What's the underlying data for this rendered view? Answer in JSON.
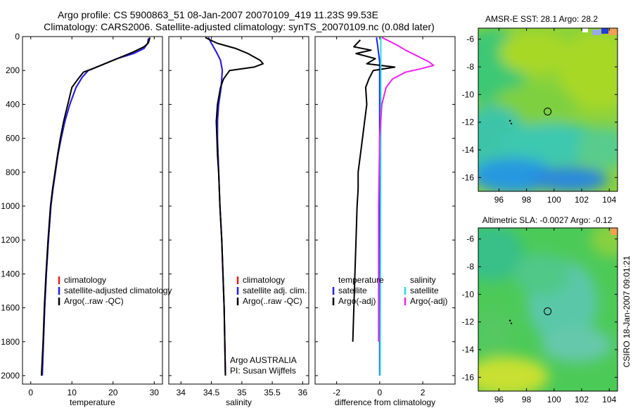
{
  "header": {
    "title_line1": "Argo profile: CS 5900863_51 08-Jan-2007 20070109_419 11.23S 99.53E",
    "title_line2": "Climatology: CARS2006. Satellite-adjusted climatology: synTS_20070109.nc (0.08d later)"
  },
  "side_label": "CSIRO 18-Jan-2007 09:01:21",
  "colors": {
    "climatology": "#e02020",
    "satellite": "#2020ee",
    "argo": "#000000",
    "sal_satellite": "#22dddd",
    "sal_argo": "#ee22ee",
    "map_marker": "#000000"
  },
  "chart_data": [
    {
      "id": "temperature",
      "type": "line",
      "xlabel": "temperature",
      "ylabel": "",
      "xlim": [
        -2,
        32
      ],
      "ylim": [
        0,
        2050
      ],
      "y_reversed": true,
      "xticks": [
        0,
        10,
        20,
        30
      ],
      "yticks": [
        0,
        200,
        400,
        600,
        800,
        1000,
        1200,
        1400,
        1600,
        1800,
        2000
      ],
      "legend": {
        "placement": "lower-right",
        "entries": [
          "climatology",
          "satellite-adjusted climatology",
          "Argo(..raw -QC)"
        ]
      },
      "series": [
        {
          "name": "climatology",
          "color_key": "climatology",
          "points": [
            [
              28.6,
              10
            ],
            [
              28.4,
              40
            ],
            [
              27.5,
              70
            ],
            [
              25,
              100
            ],
            [
              21,
              130
            ],
            [
              17,
              170
            ],
            [
              14,
              200
            ],
            [
              12.5,
              240
            ],
            [
              11,
              300
            ],
            [
              9.5,
              400
            ],
            [
              8.3,
              500
            ],
            [
              7.4,
              600
            ],
            [
              6.6,
              700
            ],
            [
              6,
              800
            ],
            [
              5.4,
              900
            ],
            [
              4.9,
              1000
            ],
            [
              4.3,
              1200
            ],
            [
              3.8,
              1400
            ],
            [
              3.4,
              1600
            ],
            [
              3.1,
              1800
            ],
            [
              2.8,
              2000
            ]
          ]
        },
        {
          "name": "satellite-adjusted climatology",
          "color_key": "satellite",
          "points": [
            [
              28.6,
              10
            ],
            [
              28.4,
              40
            ],
            [
              27.5,
              70
            ],
            [
              25,
              100
            ],
            [
              21,
              130
            ],
            [
              17,
              170
            ],
            [
              14,
              200
            ],
            [
              12.5,
              240
            ],
            [
              11,
              300
            ],
            [
              9.5,
              400
            ],
            [
              8.3,
              500
            ],
            [
              7.4,
              600
            ],
            [
              6.6,
              700
            ],
            [
              6,
              800
            ],
            [
              5.4,
              900
            ],
            [
              4.9,
              1000
            ],
            [
              4.3,
              1200
            ],
            [
              3.8,
              1400
            ],
            [
              3.4,
              1600
            ],
            [
              3.1,
              1800
            ],
            [
              2.8,
              2000
            ]
          ]
        },
        {
          "name": "Argo(..raw -QC)",
          "color_key": "argo",
          "points": [
            [
              28.9,
              5
            ],
            [
              28.8,
              20
            ],
            [
              28.5,
              40
            ],
            [
              27.5,
              60
            ],
            [
              25,
              90
            ],
            [
              22,
              120
            ],
            [
              18,
              160
            ],
            [
              15,
              190
            ],
            [
              12.8,
              210
            ],
            [
              11.5,
              250
            ],
            [
              10,
              300
            ],
            [
              9,
              400
            ],
            [
              8,
              500
            ],
            [
              7.2,
              600
            ],
            [
              6.5,
              700
            ],
            [
              5.9,
              800
            ],
            [
              5.3,
              900
            ],
            [
              4.8,
              1000
            ],
            [
              4.2,
              1200
            ],
            [
              3.7,
              1400
            ],
            [
              3.3,
              1600
            ],
            [
              3,
              1800
            ],
            [
              2.6,
              2000
            ]
          ]
        }
      ]
    },
    {
      "id": "salinity",
      "type": "line",
      "xlabel": "salinity",
      "ylabel": "",
      "xlim": [
        33.8,
        36.1
      ],
      "ylim": [
        0,
        2050
      ],
      "y_reversed": true,
      "xticks": [
        34,
        34.5,
        35,
        35.5,
        36
      ],
      "yticks": [
        0,
        200,
        400,
        600,
        800,
        1000,
        1200,
        1400,
        1600,
        1800,
        2000
      ],
      "legend": {
        "placement": "lower-right",
        "entries": [
          "climatology",
          "satellite adj. clim.",
          "Argo(..raw -QC)"
        ]
      },
      "annotations": [
        "Argo AUSTRALIA",
        "PI: Susan Wijffels"
      ],
      "series": [
        {
          "name": "climatology",
          "color_key": "climatology",
          "points": [
            [
              34.45,
              5
            ],
            [
              34.5,
              40
            ],
            [
              34.58,
              90
            ],
            [
              34.65,
              140
            ],
            [
              34.68,
              200
            ],
            [
              34.66,
              300
            ],
            [
              34.62,
              400
            ],
            [
              34.6,
              500
            ],
            [
              34.6,
              600
            ],
            [
              34.61,
              700
            ],
            [
              34.62,
              800
            ],
            [
              34.64,
              1000
            ],
            [
              34.67,
              1200
            ],
            [
              34.69,
              1400
            ],
            [
              34.71,
              1600
            ],
            [
              34.72,
              1800
            ],
            [
              34.73,
              2000
            ]
          ]
        },
        {
          "name": "satellite adj. clim.",
          "color_key": "satellite",
          "points": [
            [
              34.45,
              5
            ],
            [
              34.5,
              40
            ],
            [
              34.58,
              90
            ],
            [
              34.65,
              140
            ],
            [
              34.68,
              200
            ],
            [
              34.66,
              300
            ],
            [
              34.62,
              400
            ],
            [
              34.6,
              500
            ],
            [
              34.6,
              600
            ],
            [
              34.61,
              700
            ],
            [
              34.62,
              800
            ],
            [
              34.64,
              1000
            ],
            [
              34.67,
              1200
            ],
            [
              34.69,
              1400
            ],
            [
              34.71,
              1600
            ],
            [
              34.72,
              1800
            ],
            [
              34.73,
              2000
            ]
          ]
        },
        {
          "name": "Argo(..raw -QC)",
          "color_key": "argo",
          "points": [
            [
              34.4,
              5
            ],
            [
              34.48,
              20
            ],
            [
              34.6,
              40
            ],
            [
              34.9,
              70
            ],
            [
              35.1,
              100
            ],
            [
              35.2,
              120
            ],
            [
              35.3,
              140
            ],
            [
              35.35,
              160
            ],
            [
              35.2,
              180
            ],
            [
              34.8,
              200
            ],
            [
              34.7,
              250
            ],
            [
              34.65,
              300
            ],
            [
              34.6,
              400
            ],
            [
              34.58,
              500
            ],
            [
              34.59,
              600
            ],
            [
              34.6,
              700
            ],
            [
              34.62,
              800
            ],
            [
              34.64,
              1000
            ],
            [
              34.67,
              1200
            ],
            [
              34.69,
              1400
            ],
            [
              34.71,
              1600
            ],
            [
              34.72,
              1800
            ],
            [
              34.73,
              2000
            ]
          ]
        }
      ]
    },
    {
      "id": "difference",
      "type": "line",
      "xlabel": "difference from climatology",
      "ylabel": "",
      "xlim": [
        -3,
        3.5
      ],
      "ylim": [
        0,
        2050
      ],
      "y_reversed": true,
      "xticks": [
        -2,
        0,
        2
      ],
      "yticks": [
        0,
        200,
        400,
        600,
        800,
        1000,
        1200,
        1400,
        1600,
        1800,
        2000
      ],
      "legend": {
        "placement": "lower-right",
        "columns": [
          {
            "heading": "temperature",
            "entries": [
              "satellite",
              "Argo(-adj)"
            ]
          },
          {
            "heading": "salinity",
            "entries": [
              "satellite",
              "Argo(-adj)"
            ]
          }
        ]
      },
      "series": [
        {
          "name": "temperature satellite",
          "color_key": "satellite",
          "points": [
            [
              -0.15,
              5
            ],
            [
              -0.1,
              50
            ],
            [
              -0.05,
              100
            ],
            [
              0,
              150
            ],
            [
              0,
              2000
            ]
          ]
        },
        {
          "name": "temperature Argo(-adj)",
          "color_key": "argo",
          "points": [
            [
              -0.9,
              20
            ],
            [
              -1.2,
              60
            ],
            [
              -0.4,
              80
            ],
            [
              -1.1,
              100
            ],
            [
              -0.2,
              130
            ],
            [
              -0.6,
              160
            ],
            [
              0.7,
              180
            ],
            [
              -0.3,
              200
            ],
            [
              -0.5,
              250
            ],
            [
              -0.65,
              300
            ],
            [
              -0.6,
              400
            ],
            [
              -0.7,
              500
            ],
            [
              -0.8,
              600
            ],
            [
              -0.9,
              700
            ],
            [
              -1,
              800
            ],
            [
              -1,
              900
            ],
            [
              -1.05,
              1000
            ],
            [
              -1.1,
              1200
            ],
            [
              -1.15,
              1400
            ],
            [
              -1.2,
              1600
            ],
            [
              -1.25,
              1800
            ]
          ]
        },
        {
          "name": "salinity satellite",
          "color_key": "sal_satellite",
          "points": [
            [
              0.05,
              5
            ],
            [
              0.05,
              500
            ],
            [
              0.04,
              1000
            ],
            [
              0.03,
              1500
            ],
            [
              0.02,
              2000
            ]
          ]
        },
        {
          "name": "salinity Argo(-adj)",
          "color_key": "sal_argo",
          "points": [
            [
              0.1,
              5
            ],
            [
              0.8,
              50
            ],
            [
              1.2,
              80
            ],
            [
              2.3,
              150
            ],
            [
              2.5,
              170
            ],
            [
              1.9,
              190
            ],
            [
              1.2,
              210
            ],
            [
              0.6,
              250
            ],
            [
              0.3,
              300
            ],
            [
              0.1,
              400
            ],
            [
              0,
              600
            ],
            [
              -0.05,
              1000
            ],
            [
              -0.05,
              1500
            ],
            [
              -0.05,
              1800
            ]
          ]
        }
      ]
    },
    {
      "id": "sst_map",
      "type": "heatmap",
      "title": "AMSR-E SST: 28.1 Argo: 28.2",
      "xticks": [
        96,
        98,
        100,
        102,
        104
      ],
      "yticks": [
        -6,
        -8,
        -10,
        -12,
        -14,
        -16
      ],
      "xlim": [
        94.5,
        104.6
      ],
      "ylim": [
        -17,
        -5.2
      ],
      "argo_position": [
        99.53,
        -11.23
      ],
      "track_points": [
        [
          96.8,
          -11.9
        ],
        [
          96.9,
          -12.1
        ]
      ]
    },
    {
      "id": "sla_map",
      "type": "heatmap",
      "title": "Altimetric SLA: -0.0027 Argo: -0.12",
      "xticks": [
        96,
        98,
        100,
        102,
        104
      ],
      "yticks": [
        -6,
        -8,
        -10,
        -12,
        -14,
        -16
      ],
      "xlim": [
        94.5,
        104.6
      ],
      "ylim": [
        -17,
        -5.2
      ],
      "argo_position": [
        99.53,
        -11.23
      ],
      "track_points": [
        [
          96.8,
          -11.9
        ],
        [
          96.9,
          -12.1
        ]
      ]
    }
  ]
}
